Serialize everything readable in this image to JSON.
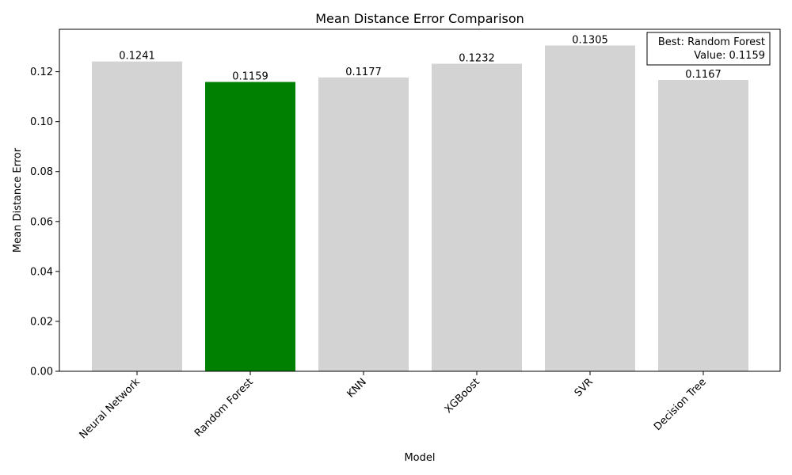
{
  "chart_data": {
    "type": "bar",
    "title": "Mean Distance Error Comparison",
    "xlabel": "Model",
    "ylabel": "Mean Distance Error",
    "categories": [
      "Neural Network",
      "Random Forest",
      "KNN",
      "XGBoost",
      "SVR",
      "Decision Tree"
    ],
    "values": [
      0.1241,
      0.1159,
      0.1177,
      0.1232,
      0.1305,
      0.1167
    ],
    "value_labels": [
      "0.1241",
      "0.1159",
      "0.1177",
      "0.1232",
      "0.1305",
      "0.1167"
    ],
    "ylim": [
      0,
      0.137
    ],
    "yticks": [
      0.0,
      0.02,
      0.04,
      0.06,
      0.08,
      0.1,
      0.12
    ],
    "ytick_labels": [
      "0.00",
      "0.02",
      "0.04",
      "0.06",
      "0.08",
      "0.10",
      "0.12"
    ],
    "highlight_index": 1,
    "colors": {
      "default_bar": "#d3d3d3",
      "highlight_bar": "#008000",
      "axis": "#000000"
    },
    "grid": false,
    "annotation": {
      "position": "top-right",
      "line1": "Best: Random Forest",
      "line2": "Value: 0.1159"
    }
  }
}
